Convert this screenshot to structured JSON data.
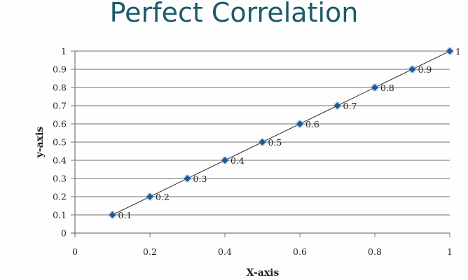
{
  "title": "Perfect Correlation",
  "chart_data": {
    "type": "scatter",
    "title": "Perfect Correlation",
    "xlabel": "X-axis",
    "ylabel": "y-axis",
    "xlim": [
      0,
      1
    ],
    "ylim": [
      0,
      1
    ],
    "x_ticks": [
      "0",
      "0.2",
      "0.4",
      "0.6",
      "0.8",
      "1"
    ],
    "y_ticks": [
      "0",
      "0.1",
      "0.2",
      "0.3",
      "0.4",
      "0.5",
      "0.6",
      "0.7",
      "0.8",
      "0.9",
      "1"
    ],
    "grid": "horizontal",
    "legend": "none",
    "series": [
      {
        "name": "Series 1",
        "x": [
          0.1,
          0.2,
          0.3,
          0.4,
          0.5,
          0.6,
          0.7,
          0.8,
          0.9,
          1
        ],
        "y": [
          0.1,
          0.2,
          0.3,
          0.4,
          0.5,
          0.6,
          0.7,
          0.8,
          0.9,
          1
        ],
        "labels": [
          "0.1",
          "0.2",
          "0.3",
          "0.4",
          "0.5",
          "0.6",
          "0.7",
          "0.8",
          "0.9",
          "1"
        ],
        "marker": "diamond",
        "marker_color": "#1f5b99",
        "line_color": "#333333"
      }
    ]
  },
  "colors": {
    "title": "#1c5a6a",
    "grid": "#8a8a8a",
    "axis": "#777777"
  }
}
